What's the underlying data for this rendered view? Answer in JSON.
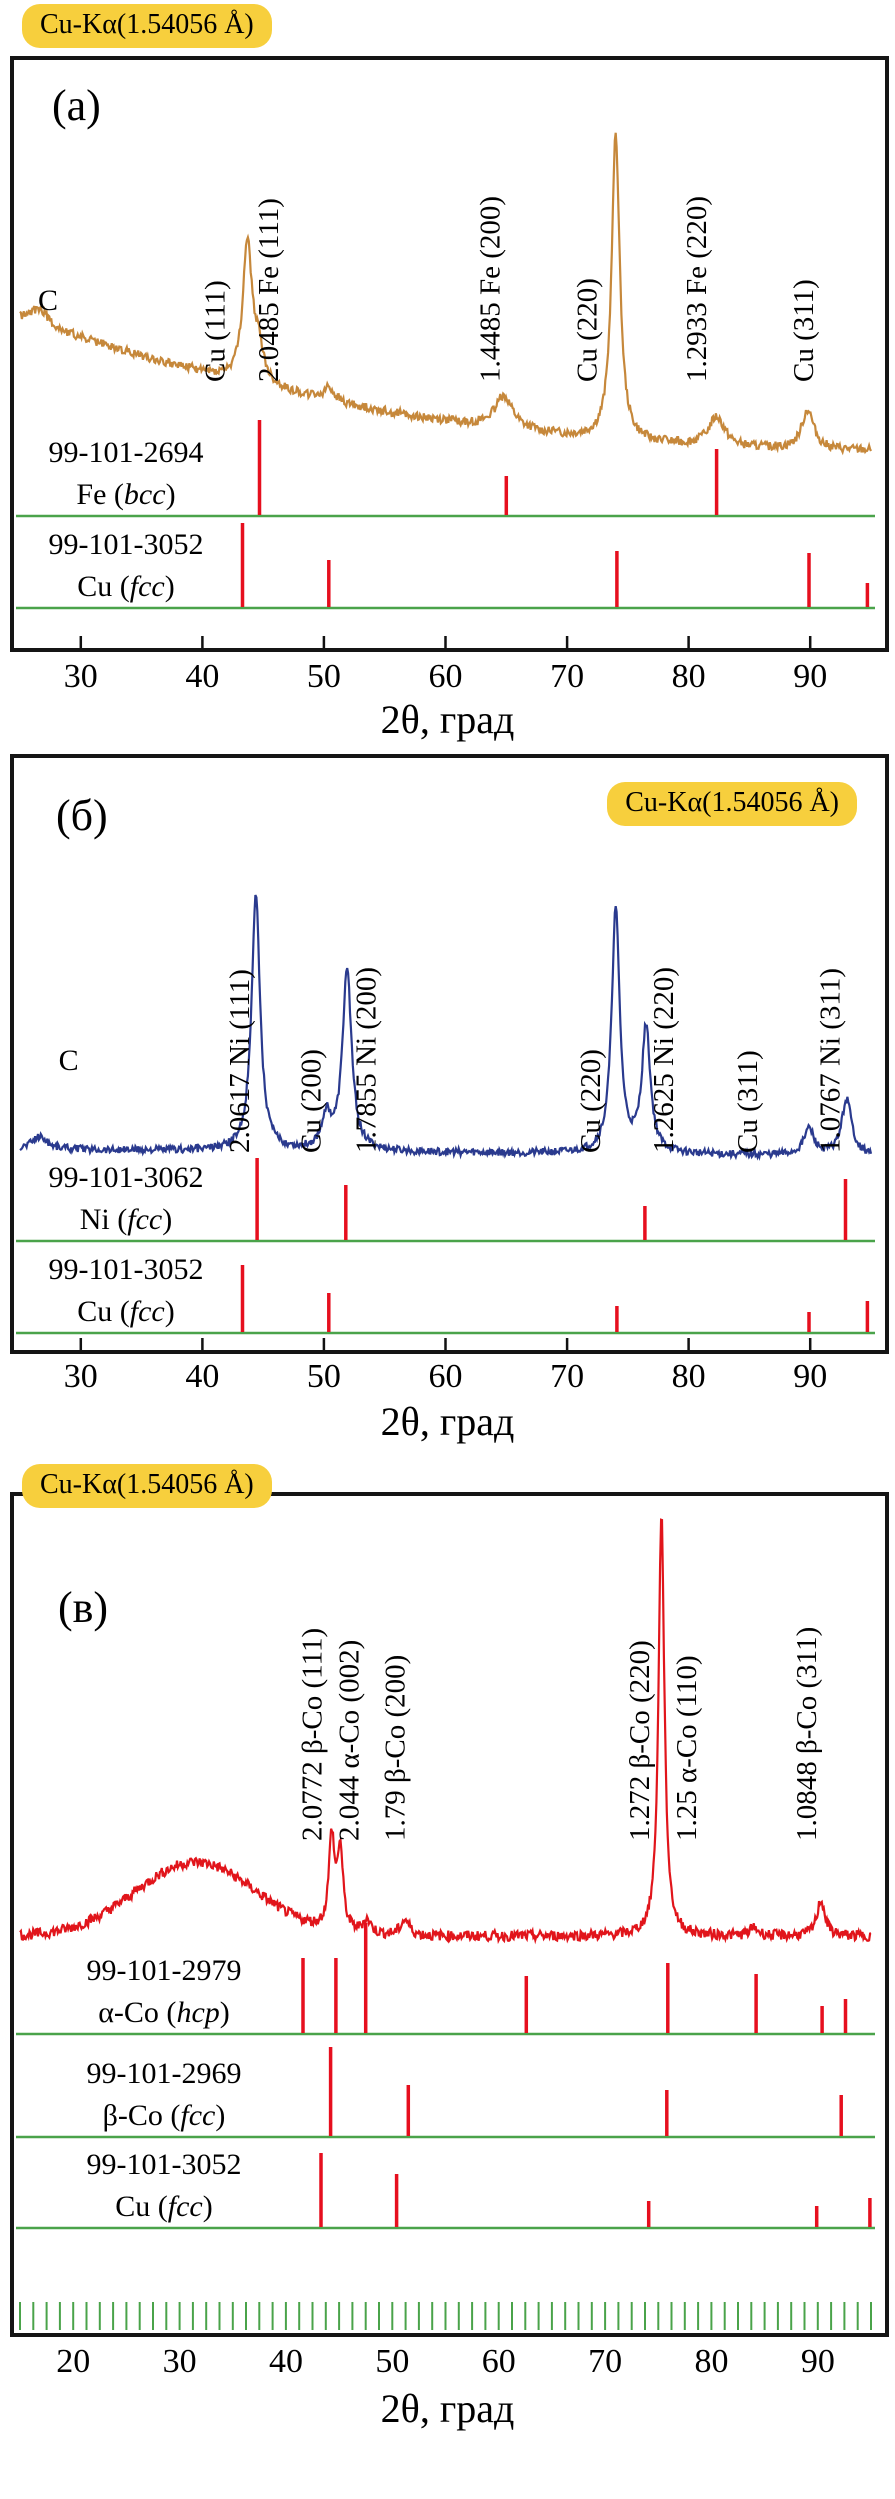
{
  "chart_data": [
    {
      "type": "line",
      "panel_label": "(а)",
      "title_badge": "Cu-Kα(1.54056 Å)",
      "xlabel": "2θ, град",
      "x_range": [
        25,
        95
      ],
      "x_ticks": [
        30,
        40,
        50,
        60,
        70,
        80,
        90
      ],
      "curve_color": "#c6883b",
      "baseline": {
        "end": 0.03,
        "amp": 0.4,
        "pow": 2.2
      },
      "noise": 0.013,
      "peaks": [
        {
          "x": 26.6,
          "h": 0.05,
          "w": 0.8
        },
        {
          "x": 43.7,
          "h": 0.42,
          "w": 0.45
        },
        {
          "x": 44.6,
          "h": 0.1,
          "w": 0.5
        },
        {
          "x": 50.4,
          "h": 0.04,
          "w": 0.5
        },
        {
          "x": 64.8,
          "h": 0.1,
          "w": 0.9
        },
        {
          "x": 74.0,
          "h": 0.93,
          "w": 0.4
        },
        {
          "x": 82.3,
          "h": 0.09,
          "w": 0.8
        },
        {
          "x": 89.8,
          "h": 0.12,
          "w": 0.6
        }
      ],
      "peak_labels": [
        {
          "x": 27.3,
          "text": "C",
          "rot": false,
          "y": 250
        },
        {
          "x": 41.0,
          "text": "Cu (111)",
          "rot": true
        },
        {
          "x": 45.4,
          "text": "2.0485 Fe (111)",
          "rot": true
        },
        {
          "x": 63.6,
          "text": "1.4485 Fe (200)",
          "rot": true
        },
        {
          "x": 71.6,
          "text": "Cu (220)",
          "rot": true
        },
        {
          "x": 80.6,
          "text": "1.2933 Fe (220)",
          "rot": true
        },
        {
          "x": 89.4,
          "text": "Cu (311)",
          "rot": true
        }
      ],
      "refs": [
        {
          "id": "99-101-2694",
          "phase": "Fe",
          "struct": "bcc",
          "sticks": [
            [
              44.7,
              96
            ],
            [
              65.0,
              40
            ],
            [
              82.3,
              67
            ]
          ]
        },
        {
          "id": "99-101-3052",
          "phase": "Cu",
          "struct": "fcc",
          "sticks": [
            [
              43.3,
              85
            ],
            [
              50.4,
              48
            ],
            [
              74.1,
              57
            ],
            [
              89.9,
              55
            ],
            [
              94.7,
              25
            ]
          ]
        }
      ]
    },
    {
      "type": "line",
      "panel_label": "(б)",
      "title_badge": "Cu-Kα(1.54056 Å)",
      "xlabel": "2θ, град",
      "x_range": [
        25,
        95
      ],
      "x_ticks": [
        30,
        40,
        50,
        60,
        70,
        80,
        90
      ],
      "curve_color": "#2a3a8e",
      "baseline": {
        "end": 0.015,
        "amp": 0.02,
        "pow": 1
      },
      "noise": 0.011,
      "peaks": [
        {
          "x": 26.6,
          "h": 0.04,
          "w": 0.8
        },
        {
          "x": 44.4,
          "h": 0.78,
          "w": 0.42
        },
        {
          "x": 50.2,
          "h": 0.1,
          "w": 0.45
        },
        {
          "x": 51.9,
          "h": 0.55,
          "w": 0.45
        },
        {
          "x": 74.0,
          "h": 0.74,
          "w": 0.4
        },
        {
          "x": 76.5,
          "h": 0.38,
          "w": 0.42
        },
        {
          "x": 89.9,
          "h": 0.08,
          "w": 0.5
        },
        {
          "x": 93.0,
          "h": 0.17,
          "w": 0.5
        }
      ],
      "peak_labels": [
        {
          "x": 29.0,
          "text": "C",
          "rot": false,
          "y": 312
        },
        {
          "x": 43.0,
          "text": "2.0617 Ni (111)",
          "rot": true
        },
        {
          "x": 48.9,
          "text": "Cu (200)",
          "rot": true
        },
        {
          "x": 53.4,
          "text": "1.7855 Ni (200)",
          "rot": true
        },
        {
          "x": 71.9,
          "text": "Cu (220)",
          "rot": true
        },
        {
          "x": 77.9,
          "text": "1.2625 Ni (220)",
          "rot": true
        },
        {
          "x": 84.8,
          "text": "Cu (311)",
          "rot": true
        },
        {
          "x": 91.6,
          "text": "1.0767 Ni (311)",
          "rot": true
        }
      ],
      "refs": [
        {
          "id": "99-101-3062",
          "phase": "Ni",
          "struct": "fcc",
          "sticks": [
            [
              44.5,
              83
            ],
            [
              51.8,
              56
            ],
            [
              76.4,
              35
            ],
            [
              92.9,
              62
            ]
          ]
        },
        {
          "id": "99-101-3052",
          "phase": "Cu",
          "struct": "fcc",
          "sticks": [
            [
              43.3,
              68
            ],
            [
              50.4,
              40
            ],
            [
              74.1,
              27
            ],
            [
              89.9,
              21
            ],
            [
              94.7,
              32
            ]
          ]
        }
      ]
    },
    {
      "type": "line",
      "panel_label": "(в)",
      "title_badge": "Cu-Kα(1.54056 Å)",
      "xlabel": "2θ, град",
      "x_range": [
        15,
        95
      ],
      "x_ticks": [
        20,
        30,
        40,
        50,
        60,
        70,
        80,
        90
      ],
      "curve_color": "#e1151b",
      "baseline": {
        "end": 0.012,
        "amp": 0.0,
        "pow": 1
      },
      "hump": {
        "c": 31.5,
        "s": 8,
        "h": 0.185
      },
      "noise": 0.013,
      "peaks": [
        {
          "x": 44.3,
          "h": 0.23,
          "w": 0.32
        },
        {
          "x": 45.1,
          "h": 0.2,
          "w": 0.32
        },
        {
          "x": 47.6,
          "h": 0.035,
          "w": 0.5
        },
        {
          "x": 51.2,
          "h": 0.04,
          "w": 0.5
        },
        {
          "x": 75.3,
          "h": 1.06,
          "w": 0.33
        },
        {
          "x": 84.0,
          "h": 0.02,
          "w": 0.5
        },
        {
          "x": 90.3,
          "h": 0.09,
          "w": 0.45
        }
      ],
      "peak_labels": [
        {
          "x": 42.4,
          "text": "2.0772 β-Co (111)",
          "rot": true
        },
        {
          "x": 45.9,
          "text": "2.044 α-Co (002)",
          "rot": true
        },
        {
          "x": 50.2,
          "text": "1.79 β-Co (200)",
          "rot": true
        },
        {
          "x": 73.2,
          "text": "1.272 β-Co (220)",
          "rot": true
        },
        {
          "x": 77.6,
          "text": "1.25 α-Co (110)",
          "rot": true
        },
        {
          "x": 88.9,
          "text": "1.0848 β-Co (311)",
          "rot": true
        }
      ],
      "refs": [
        {
          "id": "99-101-2979",
          "phase": "α-Co",
          "struct": "hcp",
          "sticks": [
            [
              41.6,
              76
            ],
            [
              44.7,
              76
            ],
            [
              47.5,
              111
            ],
            [
              62.6,
              58
            ],
            [
              75.9,
              71
            ],
            [
              84.2,
              60
            ],
            [
              90.4,
              28
            ],
            [
              92.6,
              35
            ]
          ]
        },
        {
          "id": "99-101-2969",
          "phase": "β-Co",
          "struct": "fcc",
          "sticks": [
            [
              44.2,
              90
            ],
            [
              51.5,
              52
            ],
            [
              75.8,
              47
            ],
            [
              92.2,
              42
            ]
          ]
        },
        {
          "id": "99-101-3052",
          "phase": "Cu",
          "struct": "fcc",
          "sticks": [
            [
              43.3,
              75
            ],
            [
              50.4,
              54
            ],
            [
              74.1,
              27
            ],
            [
              89.9,
              22
            ],
            [
              94.9,
              30
            ]
          ]
        }
      ]
    }
  ],
  "colors": {
    "stick_red": "#e60f1e",
    "baseline_green": "#4aa34a",
    "badge_yellow": "#f7cf3d",
    "frame_black": "#151515"
  }
}
